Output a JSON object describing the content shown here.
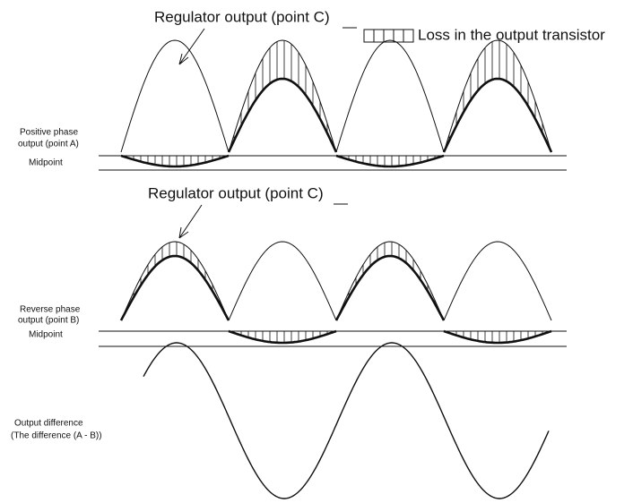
{
  "panels": [
    {
      "regulator_label": "Regulator output (point C)",
      "phase_label": [
        "Positive phase",
        "output (point A)"
      ],
      "midpoint_label": "Midpoint"
    },
    {
      "regulator_label": "Regulator output (point C)",
      "phase_label": [
        "Reverse phase",
        "output (point B)"
      ],
      "midpoint_label": "Midpoint"
    }
  ],
  "legend": {
    "label": "Loss in the output transistor"
  },
  "difference": {
    "label": [
      "Output difference",
      "(The difference (A - B))"
    ]
  }
}
